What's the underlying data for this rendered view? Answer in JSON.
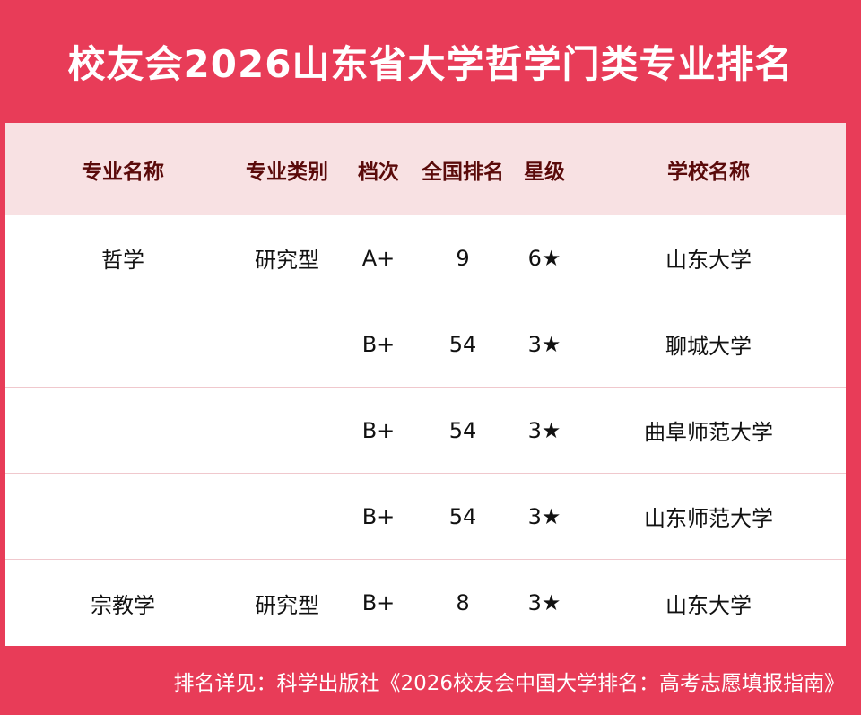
{
  "title": "校友会2026山东省大学哲学门类专业排名",
  "columns": [
    "专业名称",
    "专业类别",
    "档次",
    "全国排名",
    "星级",
    "学校名称"
  ],
  "rows": [
    [
      "哲学",
      "研究型",
      "A+",
      "9",
      "6★",
      "山东大学"
    ],
    [
      "",
      "",
      "B+",
      "54",
      "3★",
      "聊城大学"
    ],
    [
      "",
      "",
      "B+",
      "54",
      "3★",
      "曲阜师范大学"
    ],
    [
      "",
      "",
      "B+",
      "54",
      "3★",
      "山东师范大学"
    ],
    [
      "宗教学",
      "研究型",
      "B+",
      "8",
      "3★",
      "山东大学"
    ]
  ],
  "footer": "排名详见：科学出版社《2026校友会中国大学排名：高考志愿填报指南》",
  "colors": {
    "accent": "#e83c58",
    "header_bg": "#f8e1e3",
    "header_text": "#5a0a0a"
  }
}
